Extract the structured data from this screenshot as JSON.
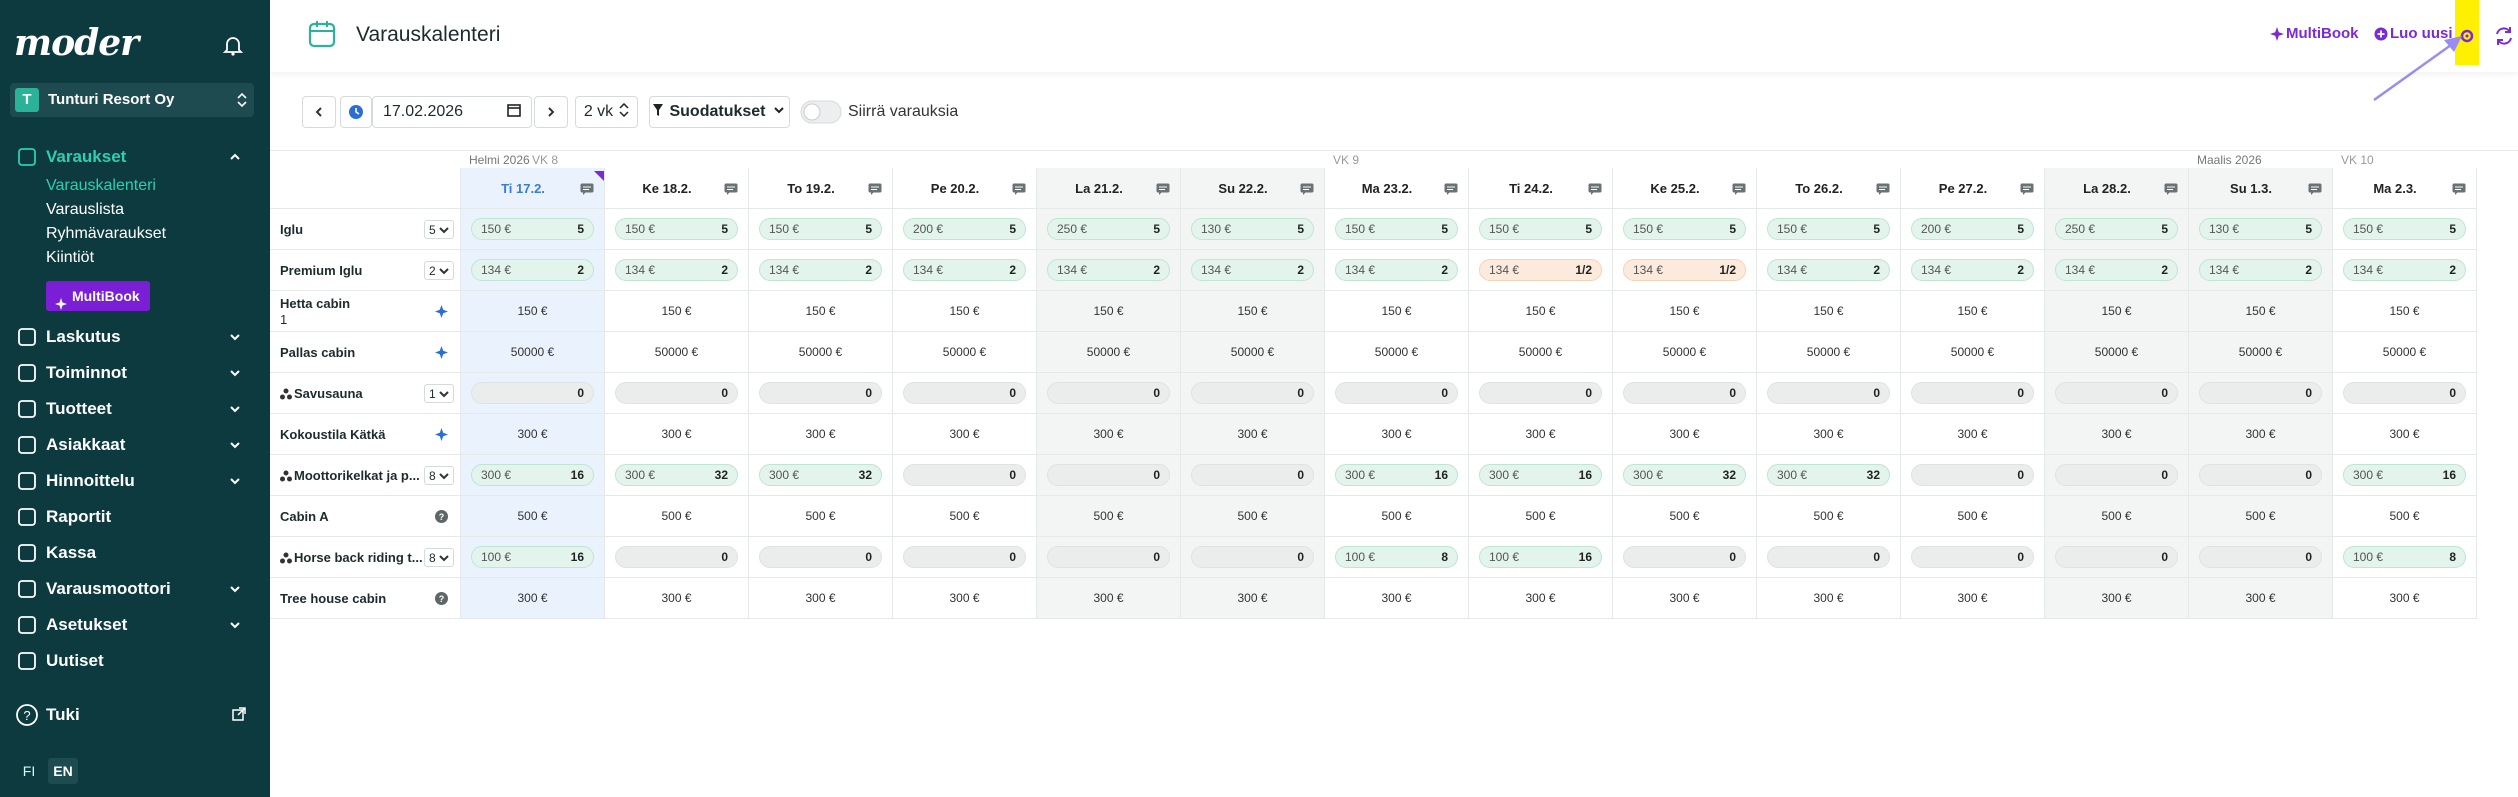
{
  "sidebar": {
    "logo": "moder",
    "company": {
      "initial": "T",
      "name": "Tunturi Resort Oy"
    },
    "nav": [
      {
        "label": "Varaukset",
        "expanded": true,
        "children": [
          "Varauskalenteri",
          "Varauslista",
          "Ryhmävaraukset",
          "Kiintiöt"
        ],
        "button": "MultiBook"
      },
      {
        "label": "Laskutus",
        "chevron": true
      },
      {
        "label": "Toiminnot",
        "chevron": true
      },
      {
        "label": "Tuotteet",
        "chevron": true
      },
      {
        "label": "Asiakkaat",
        "chevron": true
      },
      {
        "label": "Hinnoittelu",
        "chevron": true
      },
      {
        "label": "Raportit"
      },
      {
        "label": "Kassa"
      },
      {
        "label": "Varausmoottori",
        "chevron": true
      },
      {
        "label": "Asetukset",
        "chevron": true
      },
      {
        "label": "Uutiset"
      }
    ],
    "support": "Tuki",
    "languages": [
      "FI",
      "EN"
    ]
  },
  "header": {
    "title": "Varauskalenteri",
    "actions": [
      "MultiBook",
      "Luo uusi"
    ]
  },
  "toolbar": {
    "date": "17.02.2026",
    "range": "2 vk",
    "filters": "Suodatukset",
    "move_toggle": "Siirrä varauksia"
  },
  "calendar": {
    "days": [
      {
        "label": "Ti 17.2.",
        "month": "Helmi 2026",
        "week": "VK 8",
        "today": true
      },
      {
        "label": "Ke 18.2."
      },
      {
        "label": "To 19.2."
      },
      {
        "label": "Pe 20.2."
      },
      {
        "label": "La 21.2.",
        "weekend": true
      },
      {
        "label": "Su 22.2.",
        "weekend": true
      },
      {
        "label": "Ma 23.2.",
        "week": "VK 9"
      },
      {
        "label": "Ti 24.2."
      },
      {
        "label": "Ke 25.2."
      },
      {
        "label": "To 26.2."
      },
      {
        "label": "Pe 27.2."
      },
      {
        "label": "La 28.2.",
        "weekend": true
      },
      {
        "label": "Su 1.3.",
        "month": "Maalis 2026",
        "weekend": true
      },
      {
        "label": "Ma 2.3.",
        "week": "VK 10"
      }
    ],
    "rows": [
      {
        "name": "Iglu",
        "units": "5",
        "cells": [
          {
            "price": "150 €",
            "avail": "5"
          },
          {
            "price": "150 €",
            "avail": "5"
          },
          {
            "price": "150 €",
            "avail": "5"
          },
          {
            "price": "200 €",
            "avail": "5"
          },
          {
            "price": "250 €",
            "avail": "5"
          },
          {
            "price": "130 €",
            "avail": "5"
          },
          {
            "price": "150 €",
            "avail": "5"
          },
          {
            "price": "150 €",
            "avail": "5"
          },
          {
            "price": "150 €",
            "avail": "5"
          },
          {
            "price": "150 €",
            "avail": "5"
          },
          {
            "price": "200 €",
            "avail": "5"
          },
          {
            "price": "250 €",
            "avail": "5"
          },
          {
            "price": "130 €",
            "avail": "5"
          },
          {
            "price": "150 €",
            "avail": "5"
          }
        ]
      },
      {
        "name": "Premium Iglu",
        "units": "2",
        "cells": [
          {
            "price": "134 €",
            "avail": "2"
          },
          {
            "price": "134 €",
            "avail": "2"
          },
          {
            "price": "134 €",
            "avail": "2"
          },
          {
            "price": "134 €",
            "avail": "2"
          },
          {
            "price": "134 €",
            "avail": "2"
          },
          {
            "price": "134 €",
            "avail": "2"
          },
          {
            "price": "134 €",
            "avail": "2"
          },
          {
            "price": "134 €",
            "avail": "1/2",
            "color": "#fcebdd"
          },
          {
            "price": "134 €",
            "avail": "1/2",
            "color": "#fcebdd"
          },
          {
            "price": "134 €",
            "avail": "2"
          },
          {
            "price": "134 €",
            "avail": "2"
          },
          {
            "price": "134 €",
            "avail": "2"
          },
          {
            "price": "134 €",
            "avail": "2"
          },
          {
            "price": "134 €",
            "avail": "2"
          }
        ]
      },
      {
        "name": "Hetta cabin",
        "sub": "1",
        "icon": "multibook",
        "cells": [
          "150 €",
          "150 €",
          "150 €",
          "150 €",
          "150 €",
          "150 €",
          "150 €",
          "150 €",
          "150 €",
          "150 €",
          "150 €",
          "150 €",
          "150 €",
          "150 €"
        ]
      },
      {
        "name": "Pallas cabin",
        "icon": "multibook",
        "cells": [
          "50000 €",
          "50000 €",
          "50000 €",
          "50000 €",
          "50000 €",
          "50000 €",
          "50000 €",
          "50000 €",
          "50000 €",
          "50000 €",
          "50000 €",
          "50000 €",
          "50000 €",
          "50000 €"
        ]
      },
      {
        "name": "Savusauna",
        "group": true,
        "units": "1",
        "cells": [
          {
            "avail": "0"
          },
          {
            "avail": "0"
          },
          {
            "avail": "0"
          },
          {
            "avail": "0"
          },
          {
            "avail": "0"
          },
          {
            "avail": "0"
          },
          {
            "avail": "0"
          },
          {
            "avail": "0"
          },
          {
            "avail": "0"
          },
          {
            "avail": "0"
          },
          {
            "avail": "0"
          },
          {
            "avail": "0"
          },
          {
            "avail": "0"
          },
          {
            "avail": "0"
          }
        ]
      },
      {
        "name": "Kokoustila Kätkä",
        "icon": "multibook",
        "cells": [
          "300 €",
          "300 €",
          "300 €",
          "300 €",
          "300 €",
          "300 €",
          "300 €",
          "300 €",
          "300 €",
          "300 €",
          "300 €",
          "300 €",
          "300 €",
          "300 €"
        ]
      },
      {
        "name": "Moottorikelkat ja p...",
        "group": true,
        "units": "8",
        "cells": [
          {
            "price": "300 €",
            "avail": "16"
          },
          {
            "price": "300 €",
            "avail": "32"
          },
          {
            "price": "300 €",
            "avail": "32"
          },
          {
            "avail": "0"
          },
          {
            "avail": "0"
          },
          {
            "avail": "0"
          },
          {
            "price": "300 €",
            "avail": "16"
          },
          {
            "price": "300 €",
            "avail": "16"
          },
          {
            "price": "300 €",
            "avail": "32"
          },
          {
            "price": "300 €",
            "avail": "32"
          },
          {
            "avail": "0"
          },
          {
            "avail": "0"
          },
          {
            "avail": "0"
          },
          {
            "price": "300 €",
            "avail": "16"
          }
        ]
      },
      {
        "name": "Cabin A",
        "icon": "help",
        "cells": [
          "500 €",
          "500 €",
          "500 €",
          "500 €",
          "500 €",
          "500 €",
          "500 €",
          "500 €",
          "500 €",
          "500 €",
          "500 €",
          "500 €",
          "500 €",
          "500 €"
        ]
      },
      {
        "name": "Horse back riding t...",
        "group": true,
        "units": "8",
        "cells": [
          {
            "price": "100 €",
            "avail": "16"
          },
          {
            "avail": "0"
          },
          {
            "avail": "0"
          },
          {
            "avail": "0"
          },
          {
            "avail": "0"
          },
          {
            "avail": "0"
          },
          {
            "price": "100 €",
            "avail": "8"
          },
          {
            "price": "100 €",
            "avail": "16"
          },
          {
            "avail": "0"
          },
          {
            "avail": "0"
          },
          {
            "avail": "0"
          },
          {
            "avail": "0"
          },
          {
            "avail": "0"
          },
          {
            "price": "100 €",
            "avail": "8"
          }
        ]
      },
      {
        "name": "Tree house cabin",
        "icon": "help",
        "cells": [
          "300 €",
          "300 €",
          "300 €",
          "300 €",
          "300 €",
          "300 €",
          "300 €",
          "300 €",
          "300 €",
          "300 €",
          "300 €",
          "300 €",
          "300 €",
          "300 €"
        ]
      }
    ]
  }
}
